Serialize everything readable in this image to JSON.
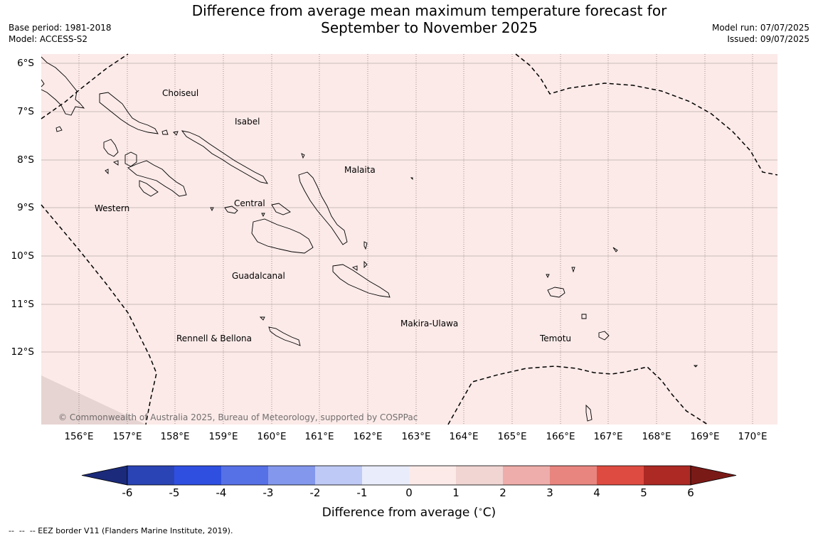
{
  "header": {
    "title_line1": "Difference from average mean maximum temperature forecast for",
    "title_line2": "September to November 2025",
    "base_period": "Base period: 1981-2018",
    "model": "Model: ACCESS-S2",
    "model_run": "Model run: 07/07/2025",
    "issued": "Issued: 09/07/2025"
  },
  "map": {
    "fill_color": "#fbeae8",
    "latitude_labels": [
      "6°S",
      "7°S",
      "8°S",
      "9°S",
      "10°S",
      "11°S",
      "12°S"
    ],
    "longitude_labels": [
      "156°E",
      "157°E",
      "158°E",
      "159°E",
      "160°E",
      "161°E",
      "162°E",
      "163°E",
      "164°E",
      "165°E",
      "166°E",
      "167°E",
      "168°E",
      "169°E",
      "170°E"
    ],
    "places": [
      {
        "name": "Choiseul"
      },
      {
        "name": "Isabel"
      },
      {
        "name": "Malaita"
      },
      {
        "name": "Western"
      },
      {
        "name": "Central"
      },
      {
        "name": "Guadalcanal"
      },
      {
        "name": "Makira-Ulawa"
      },
      {
        "name": "Rennell & Bellona"
      },
      {
        "name": "Temotu"
      }
    ],
    "copyright": "© Commonwealth of Australia 2025, Bureau of Meteorology, supported by COSPPac"
  },
  "colorbar": {
    "colors": [
      "#1b2a7a",
      "#2a44b5",
      "#2f4fe0",
      "#5670e6",
      "#8397ec",
      "#bfc9f5",
      "#e8ecfb",
      "#fbeae8",
      "#f0d5d3",
      "#eeadaa",
      "#e8857f",
      "#de4b40",
      "#ac2924",
      "#7a1a17"
    ],
    "ticks": [
      "-6",
      "-5",
      "-4",
      "-3",
      "-2",
      "-1",
      "0",
      "1",
      "2",
      "3",
      "4",
      "5",
      "6"
    ],
    "label": "Difference from average (",
    "label_unit": "C)",
    "degree_symbol": "∘"
  },
  "footer": {
    "eez_note": "--  --  -- EEZ border V11 (Flanders Marine Institute, 2019)."
  }
}
